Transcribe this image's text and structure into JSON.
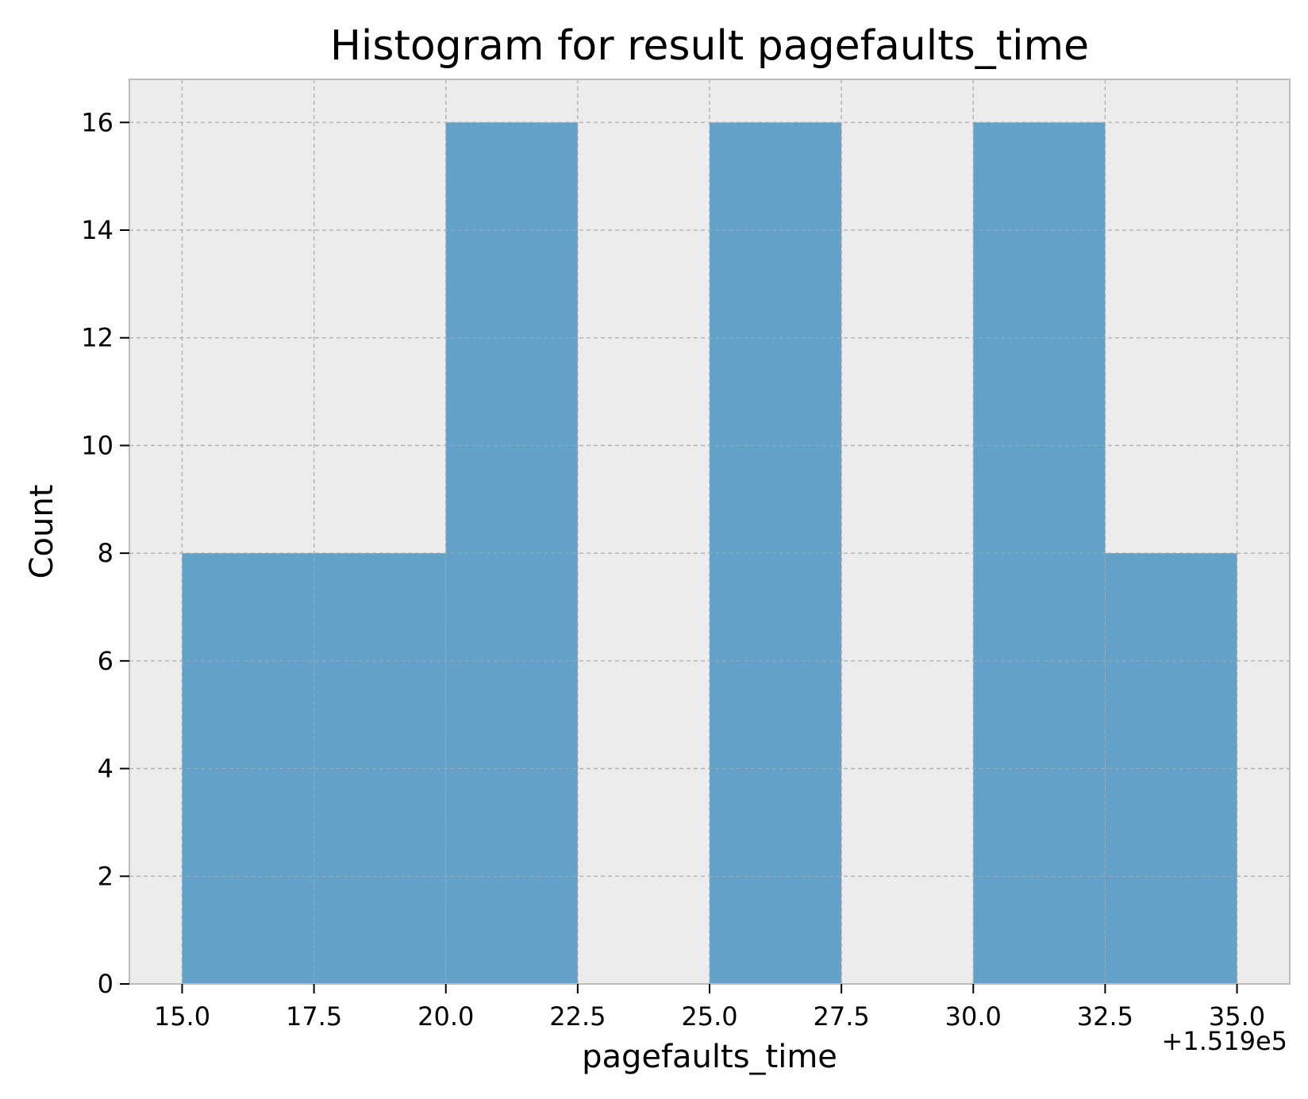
{
  "chart_data": {
    "type": "bar",
    "subtype": "histogram",
    "title": "Histogram for result pagefaults_time",
    "xlabel": "pagefaults_time",
    "ylabel": "Count",
    "x_offset_label": "+1.519e5",
    "bins": [
      {
        "start": 15.0,
        "end": 17.5,
        "count": 8
      },
      {
        "start": 17.5,
        "end": 20.0,
        "count": 8
      },
      {
        "start": 20.0,
        "end": 22.5,
        "count": 16
      },
      {
        "start": 22.5,
        "end": 25.0,
        "count": 0
      },
      {
        "start": 25.0,
        "end": 27.5,
        "count": 16
      },
      {
        "start": 27.5,
        "end": 30.0,
        "count": 0
      },
      {
        "start": 30.0,
        "end": 32.5,
        "count": 16
      },
      {
        "start": 32.5,
        "end": 35.0,
        "count": 8
      }
    ],
    "xlim": [
      14.0,
      36.0
    ],
    "ylim": [
      0,
      16.8
    ],
    "xticks": [
      "15.0",
      "17.5",
      "20.0",
      "22.5",
      "25.0",
      "27.5",
      "30.0",
      "32.5",
      "35.0"
    ],
    "yticks": [
      "0",
      "2",
      "4",
      "6",
      "8",
      "10",
      "12",
      "14",
      "16"
    ],
    "grid": true,
    "colors": {
      "bar": "#63a1c8",
      "plot_background": "#ececec",
      "grid": "#b0b0b0",
      "spine": "#bcbcbc"
    }
  }
}
